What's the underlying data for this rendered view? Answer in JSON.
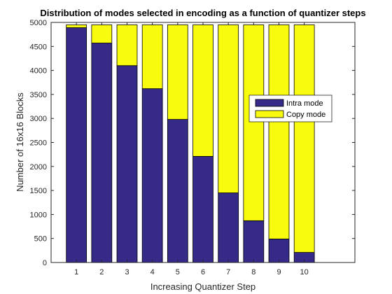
{
  "chart_data": {
    "type": "bar",
    "stacked": true,
    "title": "Distribution of modes selected in encoding as a function of quantizer steps",
    "xlabel": "Increasing Quantizer Step",
    "ylabel": "Number of 16x16 Blocks",
    "categories": [
      "1",
      "2",
      "3",
      "4",
      "5",
      "6",
      "7",
      "8",
      "9",
      "10"
    ],
    "xlim": [
      0,
      12
    ],
    "ylim": [
      0,
      5000
    ],
    "yticks": [
      0,
      500,
      1000,
      1500,
      2000,
      2500,
      3000,
      3500,
      4000,
      4500,
      5000
    ],
    "series": [
      {
        "name": "Intra mode",
        "color": "#352A87",
        "values": [
          4890,
          4570,
          4100,
          3620,
          2980,
          2210,
          1450,
          870,
          490,
          210
        ]
      },
      {
        "name": "Copy mode",
        "color": "#F9FB0E",
        "values": [
          60,
          380,
          850,
          1330,
          1970,
          2740,
          3500,
          4080,
          4460,
          4740
        ]
      }
    ],
    "grid": false,
    "legend_position": "right-middle"
  }
}
